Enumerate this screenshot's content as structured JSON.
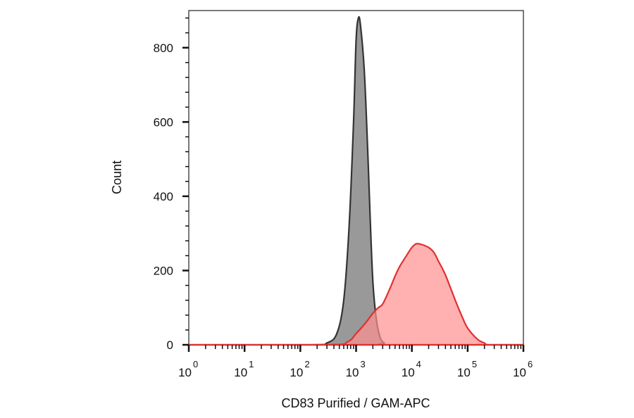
{
  "chart_data": {
    "type": "area",
    "xlabel": "CD83 Purified / GAM-APC",
    "ylabel": "Count",
    "x_scale": "log",
    "xlim": [
      1,
      1000000
    ],
    "ylim": [
      0,
      900
    ],
    "y_ticks": [
      0,
      200,
      400,
      600,
      800
    ],
    "x_ticks": [
      {
        "base": "10",
        "exp": "0",
        "value": 1
      },
      {
        "base": "10",
        "exp": "1",
        "value": 10
      },
      {
        "base": "10",
        "exp": "2",
        "value": 100
      },
      {
        "base": "10",
        "exp": "3",
        "value": 1000
      },
      {
        "base": "10",
        "exp": "4",
        "value": 10000
      },
      {
        "base": "10",
        "exp": "5",
        "value": 100000
      },
      {
        "base": "10",
        "exp": "6",
        "value": 1000000
      }
    ],
    "series": [
      {
        "color": "#999999",
        "stroke": "#333333",
        "x": [
          1,
          150,
          300,
          450,
          600,
          750,
          900,
          1000,
          1100,
          1200,
          1400,
          1600,
          1800,
          2000,
          2300,
          2700,
          3200,
          4000,
          1000000
        ],
        "y": [
          0,
          0,
          5,
          30,
          120,
          320,
          600,
          820,
          880,
          860,
          740,
          540,
          330,
          170,
          70,
          20,
          5,
          0,
          0
        ]
      },
      {
        "color": "#ff8e8e",
        "stroke": "#e03030",
        "x": [
          1,
          300,
          700,
          1000,
          1500,
          2000,
          2500,
          3000,
          4000,
          5000,
          6000,
          8000,
          10000,
          12000,
          15000,
          20000,
          25000,
          30000,
          40000,
          60000,
          80000,
          100000,
          150000,
          200000,
          250000,
          1000000
        ],
        "y": [
          0,
          0,
          8,
          30,
          60,
          85,
          100,
          110,
          150,
          185,
          210,
          240,
          262,
          272,
          270,
          262,
          248,
          225,
          188,
          120,
          75,
          45,
          15,
          5,
          0,
          0
        ]
      }
    ]
  }
}
